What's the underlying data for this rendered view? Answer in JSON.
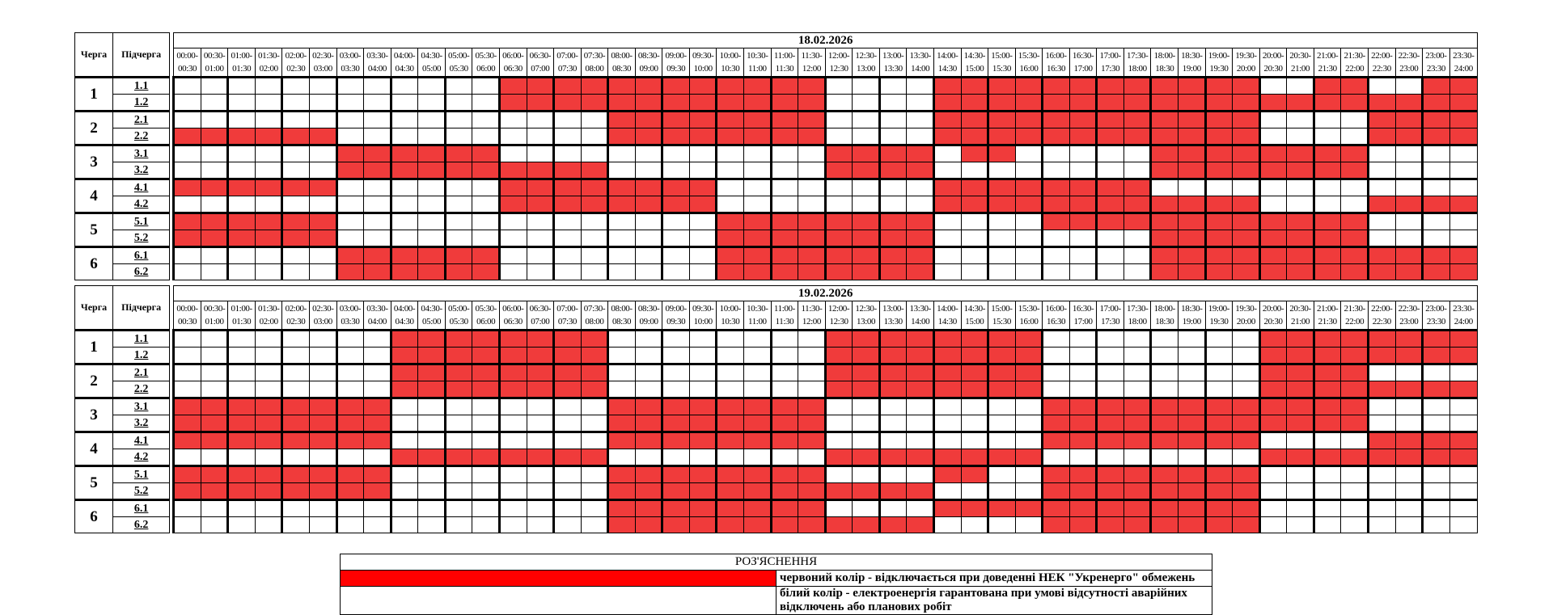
{
  "headers": {
    "queue": "Черга",
    "subqueue": "Підчерга"
  },
  "times": [
    [
      "00:00-",
      "00:30"
    ],
    [
      "00:30-",
      "01:00"
    ],
    [
      "01:00-",
      "01:30"
    ],
    [
      "01:30-",
      "02:00"
    ],
    [
      "02:00-",
      "02:30"
    ],
    [
      "02:30-",
      "03:00"
    ],
    [
      "03:00-",
      "03:30"
    ],
    [
      "03:30-",
      "04:00"
    ],
    [
      "04:00-",
      "04:30"
    ],
    [
      "04:30-",
      "05:00"
    ],
    [
      "05:00-",
      "05:30"
    ],
    [
      "05:30-",
      "06:00"
    ],
    [
      "06:00-",
      "06:30"
    ],
    [
      "06:30-",
      "07:00"
    ],
    [
      "07:00-",
      "07:30"
    ],
    [
      "07:30-",
      "08:00"
    ],
    [
      "08:00-",
      "08:30"
    ],
    [
      "08:30-",
      "09:00"
    ],
    [
      "09:00-",
      "09:30"
    ],
    [
      "09:30-",
      "10:00"
    ],
    [
      "10:00-",
      "10:30"
    ],
    [
      "10:30-",
      "11:00"
    ],
    [
      "11:00-",
      "11:30"
    ],
    [
      "11:30-",
      "12:00"
    ],
    [
      "12:00-",
      "12:30"
    ],
    [
      "12:30-",
      "13:00"
    ],
    [
      "13:00-",
      "13:30"
    ],
    [
      "13:30-",
      "14:00"
    ],
    [
      "14:00-",
      "14:30"
    ],
    [
      "14:30-",
      "15:00"
    ],
    [
      "15:00-",
      "15:30"
    ],
    [
      "15:30-",
      "16:00"
    ],
    [
      "16:00-",
      "16:30"
    ],
    [
      "16:30-",
      "17:00"
    ],
    [
      "17:00-",
      "17:30"
    ],
    [
      "17:30-",
      "18:00"
    ],
    [
      "18:00-",
      "18:30"
    ],
    [
      "18:30-",
      "19:00"
    ],
    [
      "19:00-",
      "19:30"
    ],
    [
      "19:30-",
      "20:00"
    ],
    [
      "20:00-",
      "20:30"
    ],
    [
      "20:30-",
      "21:00"
    ],
    [
      "21:00-",
      "21:30"
    ],
    [
      "21:30-",
      "22:00"
    ],
    [
      "22:00-",
      "22:30"
    ],
    [
      "22:30-",
      "23:00"
    ],
    [
      "23:00-",
      "23:30"
    ],
    [
      "23:30-",
      "24:00"
    ]
  ],
  "days": [
    {
      "date": "18.02.2026",
      "queues": [
        {
          "label": "1",
          "subs": [
            {
              "label": "1.1",
              "outages": [
                [
                  12,
                  24
                ],
                [
                  28,
                  40
                ],
                [
                  42,
                  44
                ],
                [
                  46,
                  48
                ]
              ]
            },
            {
              "label": "1.2",
              "outages": [
                [
                  12,
                  24
                ],
                [
                  28,
                  48
                ]
              ]
            }
          ]
        },
        {
          "label": "2",
          "subs": [
            {
              "label": "2.1",
              "outages": [
                [
                  16,
                  24
                ],
                [
                  28,
                  40
                ],
                [
                  44,
                  48
                ]
              ]
            },
            {
              "label": "2.2",
              "outages": [
                [
                  0,
                  6
                ],
                [
                  16,
                  24
                ],
                [
                  28,
                  40
                ],
                [
                  44,
                  48
                ]
              ]
            }
          ]
        },
        {
          "label": "3",
          "subs": [
            {
              "label": "3.1",
              "outages": [
                [
                  6,
                  12
                ],
                [
                  24,
                  28
                ],
                [
                  29,
                  31
                ],
                [
                  36,
                  44
                ]
              ]
            },
            {
              "label": "3.2",
              "outages": [
                [
                  6,
                  16
                ],
                [
                  24,
                  28
                ],
                [
                  36,
                  44
                ]
              ]
            }
          ]
        },
        {
          "label": "4",
          "subs": [
            {
              "label": "4.1",
              "outages": [
                [
                  0,
                  6
                ],
                [
                  12,
                  20
                ],
                [
                  28,
                  36
                ]
              ]
            },
            {
              "label": "4.2",
              "outages": [
                [
                  12,
                  20
                ],
                [
                  28,
                  40
                ],
                [
                  44,
                  48
                ]
              ]
            }
          ]
        },
        {
          "label": "5",
          "subs": [
            {
              "label": "5.1",
              "outages": [
                [
                  0,
                  6
                ],
                [
                  20,
                  28
                ],
                [
                  32,
                  44
                ]
              ]
            },
            {
              "label": "5.2",
              "outages": [
                [
                  0,
                  6
                ],
                [
                  20,
                  28
                ],
                [
                  36,
                  44
                ]
              ]
            }
          ]
        },
        {
          "label": "6",
          "subs": [
            {
              "label": "6.1",
              "outages": [
                [
                  6,
                  12
                ],
                [
                  20,
                  28
                ],
                [
                  36,
                  48
                ]
              ]
            },
            {
              "label": "6.2",
              "outages": [
                [
                  6,
                  12
                ],
                [
                  20,
                  28
                ],
                [
                  36,
                  48
                ]
              ]
            }
          ]
        }
      ]
    },
    {
      "date": "19.02.2026",
      "queues": [
        {
          "label": "1",
          "subs": [
            {
              "label": "1.1",
              "outages": [
                [
                  8,
                  16
                ],
                [
                  24,
                  32
                ],
                [
                  40,
                  48
                ]
              ]
            },
            {
              "label": "1.2",
              "outages": [
                [
                  8,
                  16
                ],
                [
                  24,
                  32
                ],
                [
                  40,
                  48
                ]
              ]
            }
          ]
        },
        {
          "label": "2",
          "subs": [
            {
              "label": "2.1",
              "outages": [
                [
                  8,
                  16
                ],
                [
                  24,
                  32
                ],
                [
                  40,
                  44
                ]
              ]
            },
            {
              "label": "2.2",
              "outages": [
                [
                  8,
                  16
                ],
                [
                  24,
                  32
                ],
                [
                  40,
                  48
                ]
              ]
            }
          ]
        },
        {
          "label": "3",
          "subs": [
            {
              "label": "3.1",
              "outages": [
                [
                  0,
                  8
                ],
                [
                  16,
                  24
                ],
                [
                  32,
                  44
                ]
              ]
            },
            {
              "label": "3.2",
              "outages": [
                [
                  0,
                  8
                ],
                [
                  16,
                  24
                ],
                [
                  32,
                  44
                ]
              ]
            }
          ]
        },
        {
          "label": "4",
          "subs": [
            {
              "label": "4.1",
              "outages": [
                [
                  0,
                  8
                ],
                [
                  16,
                  24
                ],
                [
                  32,
                  40
                ],
                [
                  44,
                  48
                ]
              ]
            },
            {
              "label": "4.2",
              "outages": [
                [
                  8,
                  16
                ],
                [
                  24,
                  32
                ],
                [
                  40,
                  48
                ]
              ]
            }
          ]
        },
        {
          "label": "5",
          "subs": [
            {
              "label": "5.1",
              "outages": [
                [
                  0,
                  8
                ],
                [
                  16,
                  24
                ],
                [
                  28,
                  30
                ],
                [
                  32,
                  40
                ]
              ]
            },
            {
              "label": "5.2",
              "outages": [
                [
                  0,
                  8
                ],
                [
                  16,
                  28
                ],
                [
                  32,
                  40
                ]
              ]
            }
          ]
        },
        {
          "label": "6",
          "subs": [
            {
              "label": "6.1",
              "outages": [
                [
                  16,
                  24
                ],
                [
                  28,
                  32
                ],
                [
                  32,
                  40
                ]
              ]
            },
            {
              "label": "6.2",
              "outages": [
                [
                  16,
                  28
                ],
                [
                  32,
                  40
                ]
              ]
            }
          ]
        }
      ]
    }
  ],
  "legend": {
    "title": "РОЗ'ЯСНЕННЯ",
    "red_color": "#ff0000",
    "red_text": "червоний колір - відключається при доведенні НЕК \"Укренерго\" обмежень",
    "white_color": "#ffffff",
    "white_text": "білий колір - електроенергія гарантована при умові відсутності аварійних відключень або планових робіт"
  }
}
